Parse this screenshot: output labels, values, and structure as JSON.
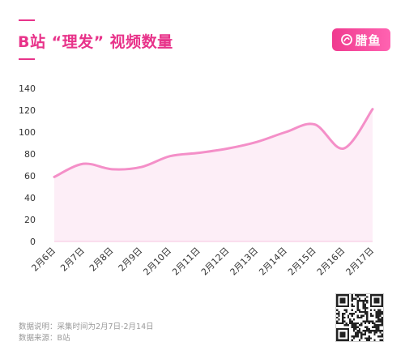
{
  "header": {
    "title": "B站 “理发” 视频数量",
    "brand_name": "腊鱼"
  },
  "colors": {
    "accent": "#e8338a",
    "line": "#f48fc8",
    "area": "#fdeef7",
    "brand_gradient_start": "#f03a8f",
    "brand_gradient_end": "#ff63b1"
  },
  "chart_data": {
    "type": "area",
    "categories": [
      "2月6日",
      "2月7日",
      "2月8日",
      "2月9日",
      "2月10日",
      "2月11日",
      "2月12日",
      "2月13日",
      "2月14日",
      "2月15日",
      "2月16日",
      "2月17日"
    ],
    "series": [
      {
        "values": [
          59,
          71,
          66,
          68,
          78,
          81,
          85,
          91,
          100,
          107,
          85,
          121
        ]
      }
    ],
    "ylim": [
      0,
      140
    ],
    "yticks": [
      0,
      20,
      40,
      60,
      80,
      100,
      120,
      140
    ],
    "xlabel": "",
    "ylabel": "",
    "grid": false,
    "smooth": true
  },
  "footer": {
    "note_line1": "数据说明：采集时间为2月7日-2月14日",
    "note_line2": "数据来源：B站",
    "qr_label": "qr-code"
  }
}
